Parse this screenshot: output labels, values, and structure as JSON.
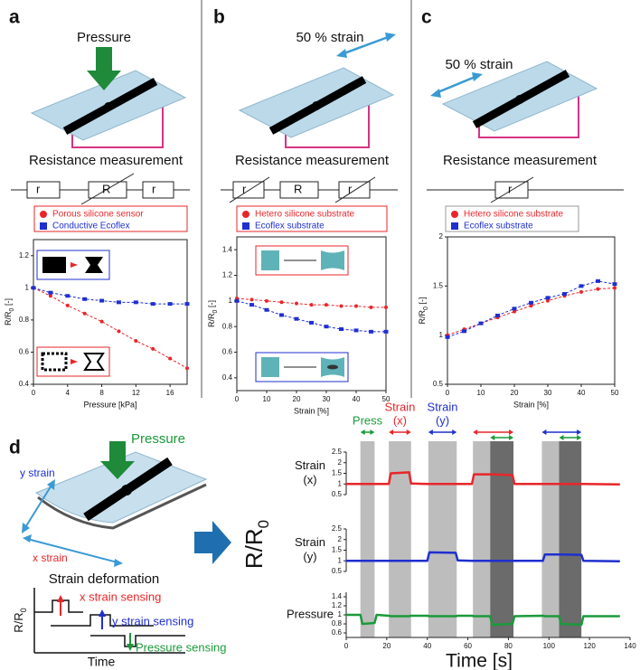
{
  "panel_labels": [
    "a",
    "b",
    "c",
    "d"
  ],
  "illustrations": {
    "a": {
      "force": "Pressure",
      "measurement": "Resistance measurement",
      "circuit": [
        "r",
        "R",
        "r"
      ]
    },
    "b": {
      "strain": "50 % strain",
      "measurement": "Resistance measurement",
      "circuit": [
        "r",
        "R",
        "r"
      ]
    },
    "c": {
      "strain": "50 % strain",
      "measurement": "Resistance measurement",
      "circuit": [
        "r"
      ]
    },
    "d": {
      "force": "Pressure",
      "y_strain": "y strain",
      "x_strain": "x strain",
      "caption": "Strain deformation",
      "schematic": {
        "ylabel": {
          "text": "R/R",
          "sub": "0"
        },
        "xlabel": "Time",
        "sensing": [
          "x strain sensing",
          "y strain sensing",
          "Pressure sensing"
        ]
      },
      "ylabel": {
        "text": "R/R",
        "sub": "0"
      }
    }
  },
  "chart_data": [
    {
      "type": "scatter",
      "frame": true,
      "trend_line": "dashed",
      "legend": "top",
      "legend_frame_color": "#e8262a",
      "x": [
        0,
        2,
        4,
        6,
        8,
        10,
        12,
        14,
        16,
        18
      ],
      "series": [
        {
          "name": "Porous silicone sensor",
          "color": "#e8262a",
          "marker": "circle",
          "values": [
            1.0,
            0.95,
            0.89,
            0.84,
            0.79,
            0.73,
            0.67,
            0.62,
            0.56,
            0.5
          ]
        },
        {
          "name": "Conductive Ecoflex",
          "color": "#1f2fd0",
          "marker": "square",
          "values": [
            1.0,
            0.97,
            0.95,
            0.93,
            0.92,
            0.91,
            0.91,
            0.9,
            0.9,
            0.9
          ]
        }
      ],
      "xlim": [
        0,
        18
      ],
      "xticks": [
        0,
        4,
        8,
        12,
        16
      ],
      "ylim": [
        0.4,
        1.3
      ],
      "yticks": [
        0.4,
        0.6,
        0.8,
        1,
        1.2
      ],
      "xlabel": "Pressure [kPa]",
      "ylabel": {
        "text": "R/R",
        "sub": "0",
        "suffix": " [-]"
      }
    },
    {
      "type": "scatter",
      "frame": true,
      "trend_line": "dashed",
      "legend": "top",
      "legend_frame_color": "#e8262a",
      "x": [
        0,
        5,
        10,
        15,
        20,
        25,
        30,
        35,
        40,
        45,
        50
      ],
      "series": [
        {
          "name": "Hetero silicone substrate",
          "color": "#e8262a",
          "marker": "circle",
          "values": [
            1.02,
            1.01,
            1.0,
            0.99,
            0.98,
            0.97,
            0.97,
            0.96,
            0.96,
            0.95,
            0.95
          ]
        },
        {
          "name": "Ecoflex substrate",
          "color": "#1f2fd0",
          "marker": "square",
          "values": [
            1.0,
            0.97,
            0.93,
            0.89,
            0.86,
            0.83,
            0.8,
            0.78,
            0.77,
            0.76,
            0.76
          ]
        }
      ],
      "xlim": [
        0,
        50
      ],
      "xticks": [
        0,
        10,
        20,
        30,
        40,
        50
      ],
      "ylim": [
        0.3,
        1.5
      ],
      "yticks": [
        0.4,
        0.6,
        0.8,
        1,
        1.2,
        1.4
      ],
      "xlabel": "Strain [%]",
      "ylabel": {
        "text": "R/R",
        "sub": "0",
        "suffix": " [-]"
      }
    },
    {
      "type": "scatter",
      "frame": true,
      "trend_line": "dashed",
      "legend": "top",
      "legend_frame_color": "#9a9a9a",
      "x": [
        0,
        5,
        10,
        15,
        20,
        25,
        30,
        35,
        40,
        45,
        50
      ],
      "series": [
        {
          "name": "Hetero silicone substrate",
          "color": "#e8262a",
          "marker": "circle",
          "values": [
            1.0,
            1.06,
            1.12,
            1.18,
            1.24,
            1.3,
            1.35,
            1.4,
            1.44,
            1.47,
            1.48
          ]
        },
        {
          "name": "Ecoflex substrate",
          "color": "#1f2fd0",
          "marker": "square",
          "values": [
            0.98,
            1.04,
            1.12,
            1.2,
            1.27,
            1.33,
            1.38,
            1.42,
            1.5,
            1.55,
            1.52
          ]
        }
      ],
      "xlim": [
        0,
        50
      ],
      "xticks": [
        0,
        10,
        20,
        30,
        40,
        50
      ],
      "ylim": [
        0.5,
        2
      ],
      "yticks": [
        0.5,
        1,
        1.5,
        2
      ],
      "xlabel": "Strain [%]",
      "ylabel": {
        "text": "R/R",
        "sub": "0",
        "suffix": " [-]"
      }
    },
    {
      "type": "line",
      "color": "#e8262a",
      "ylabel": [
        "Strain",
        "(x)"
      ],
      "x": [
        0,
        7,
        8,
        14,
        15,
        21,
        22,
        31,
        32,
        40,
        41,
        54,
        55,
        62,
        63,
        71,
        72,
        82,
        83,
        97,
        98,
        105,
        106,
        116,
        117,
        135
      ],
      "values": [
        1,
        1,
        1,
        1,
        1,
        1,
        1.5,
        1.55,
        1.02,
        1,
        1,
        1,
        1,
        1,
        1.45,
        1.45,
        1.45,
        1.42,
        1,
        1,
        1,
        1,
        1,
        1,
        1,
        0.98
      ],
      "xlim": [
        0,
        140
      ],
      "ylim": [
        0.5,
        2.5
      ],
      "yticks": [
        0.5,
        1,
        1.5,
        2,
        2.5
      ],
      "spans": [
        {
          "start": 7,
          "end": 14,
          "color": "#bdbdbd"
        },
        {
          "start": 21,
          "end": 32,
          "color": "#bdbdbd"
        },
        {
          "start": 40.5,
          "end": 54.5,
          "color": "#bdbdbd"
        },
        {
          "start": 62.5,
          "end": 71,
          "color": "#bdbdbd"
        },
        {
          "start": 71,
          "end": 82.5,
          "color": "#6b6b6b"
        },
        {
          "start": 96.5,
          "end": 105,
          "color": "#bdbdbd"
        },
        {
          "start": 105,
          "end": 116,
          "color": "#6b6b6b"
        }
      ],
      "arrows": [
        {
          "start": 7,
          "end": 14,
          "color": "#1a9a3a",
          "label": [
            "Press"
          ]
        },
        {
          "start": 21,
          "end": 32,
          "color": "#e8262a",
          "label": [
            "Strain",
            "(x)"
          ]
        },
        {
          "start": 40.5,
          "end": 54.5,
          "color": "#1f2fd0",
          "label": [
            "Strain",
            "(y)"
          ]
        },
        {
          "start": 62.5,
          "end": 82.5,
          "color": "#e8262a"
        },
        {
          "start": 71,
          "end": 82.5,
          "color": "#1a9a3a"
        },
        {
          "start": 96.5,
          "end": 116,
          "color": "#1f2fd0"
        },
        {
          "start": 105,
          "end": 116,
          "color": "#1a9a3a"
        }
      ]
    },
    {
      "type": "line",
      "color": "#1f2fd0",
      "ylabel": [
        "Strain",
        "(y)"
      ],
      "x": [
        0,
        7,
        8,
        14,
        15,
        21,
        22,
        31,
        32,
        40,
        41,
        54,
        55,
        62,
        63,
        71,
        72,
        82,
        83,
        97,
        98,
        105,
        106,
        116,
        117,
        135
      ],
      "values": [
        1,
        1,
        1,
        1,
        1,
        1,
        1,
        1,
        1,
        1,
        1.4,
        1.38,
        1.02,
        1,
        1,
        1,
        1,
        1,
        1,
        1,
        1.3,
        1.3,
        1.3,
        1.28,
        1,
        0.98
      ],
      "xlim": [
        0,
        140
      ],
      "ylim": [
        0.5,
        2.5
      ],
      "yticks": [
        0.5,
        1,
        1.5,
        2,
        2.5
      ]
    },
    {
      "type": "line",
      "color": "#1a9a3a",
      "ylabel": [
        "Pressure"
      ],
      "x": [
        0,
        7,
        8,
        14,
        15,
        21,
        22,
        31,
        32,
        40,
        41,
        54,
        55,
        62,
        63,
        71,
        72,
        82,
        83,
        97,
        98,
        105,
        106,
        116,
        117,
        135
      ],
      "values": [
        1,
        1,
        0.8,
        0.82,
        1,
        0.98,
        0.97,
        0.97,
        0.98,
        0.98,
        0.97,
        0.97,
        0.98,
        0.98,
        0.97,
        0.97,
        0.78,
        0.8,
        0.97,
        0.98,
        0.97,
        0.97,
        0.8,
        0.78,
        0.97,
        0.97
      ],
      "xlim": [
        0,
        140
      ],
      "xticks": [
        0,
        20,
        40,
        60,
        80,
        100,
        120,
        140
      ],
      "ylim": [
        0.5,
        1.5
      ],
      "yticks": [
        0.6,
        0.8,
        1,
        1.2,
        1.4
      ],
      "xlabel": "Time [s]"
    }
  ]
}
